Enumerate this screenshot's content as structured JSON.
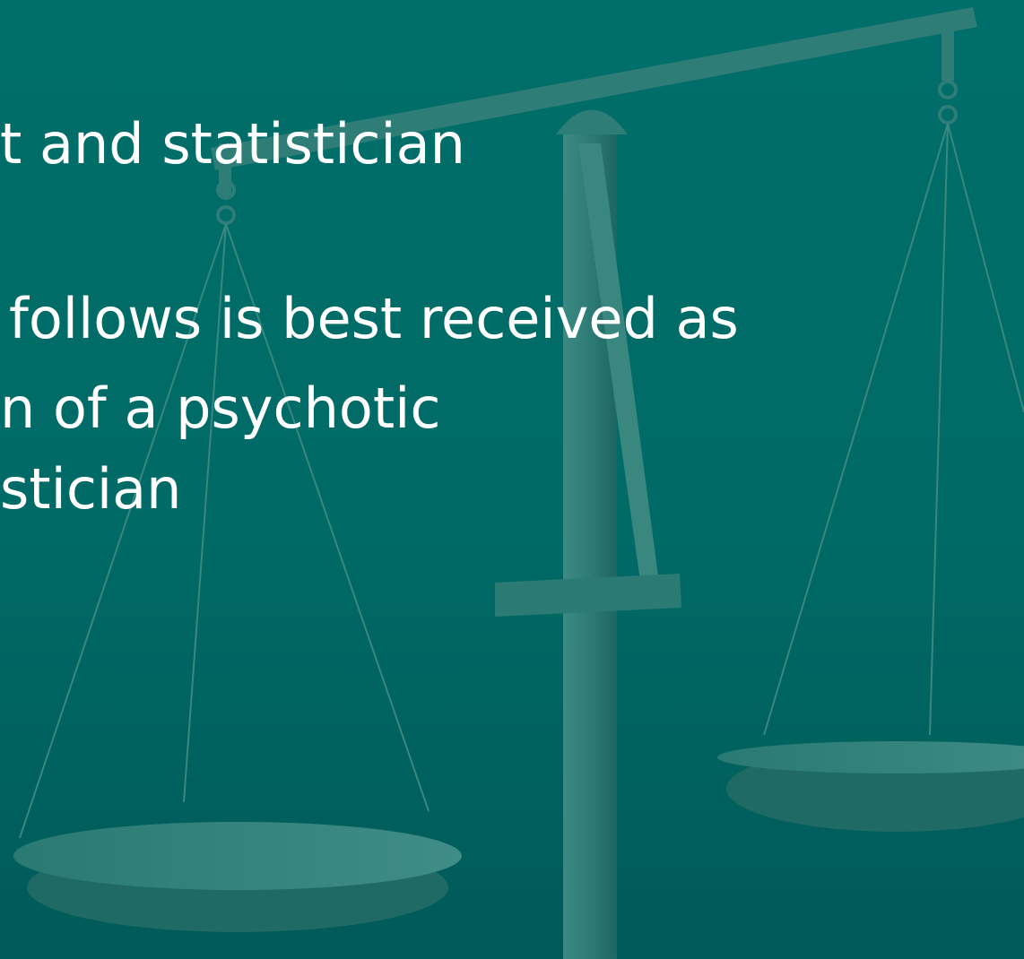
{
  "slide": {
    "lines": [
      "t and statistician",
      "follows is best received as",
      "n of a psychotic",
      "stician"
    ]
  }
}
